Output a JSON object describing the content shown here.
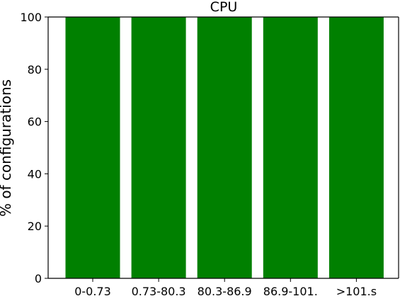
{
  "chart_data": {
    "type": "bar",
    "title": "CPU",
    "xlabel": "",
    "ylabel": "% of configurations",
    "categories": [
      "0-0.73",
      "0.73-80.3",
      "80.3-86.9",
      "86.9-101.",
      ">101.s"
    ],
    "values": [
      100,
      100,
      100,
      100,
      100
    ],
    "ylim": [
      0,
      100
    ],
    "yticks": [
      0,
      20,
      40,
      60,
      80,
      100
    ],
    "grid": false,
    "bar_color": "#008000"
  }
}
